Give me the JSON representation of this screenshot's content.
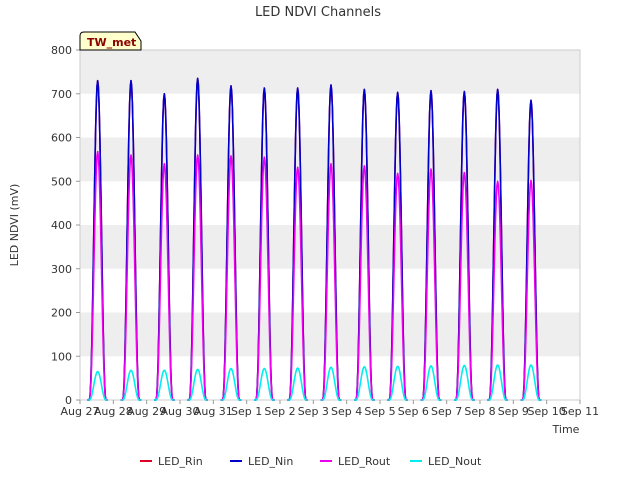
{
  "chart_data": {
    "type": "line",
    "title": "LED NDVI Channels",
    "xlabel": "Time",
    "ylabel": "LED NDVI (mV)",
    "ylim": [
      0,
      800
    ],
    "yticks": [
      0,
      100,
      200,
      300,
      400,
      500,
      600,
      700,
      800
    ],
    "x_range_days": [
      0,
      15
    ],
    "xtick_labels": [
      "Aug 27",
      "Aug 28",
      "Aug 29",
      "Aug 30",
      "Aug 31",
      "Sep 1",
      "Sep 2",
      "Sep 3",
      "Sep 4",
      "Sep 5",
      "Sep 6",
      "Sep 7",
      "Sep 8",
      "Sep 9",
      "Sep 10",
      "Sep 11"
    ],
    "grid": "horizontal bands",
    "legend_position": "bottom",
    "badge": "TW_met",
    "day_peak_dates": [
      "Aug 27",
      "Aug 28",
      "Aug 29",
      "Aug 30",
      "Aug 31",
      "Sep 1",
      "Sep 2",
      "Sep 3",
      "Sep 4",
      "Sep 5",
      "Sep 6",
      "Sep 7",
      "Sep 8",
      "Sep 9"
    ],
    "series": [
      {
        "name": "LED_Rin",
        "color": "#dd0022",
        "peaks": [
          730,
          730,
          700,
          735,
          718,
          713,
          713,
          720,
          710,
          703,
          707,
          705,
          710,
          685
        ]
      },
      {
        "name": "LED_Nin",
        "color": "#0000cc",
        "peaks": [
          730,
          730,
          700,
          735,
          718,
          713,
          713,
          720,
          710,
          703,
          707,
          705,
          710,
          685
        ]
      },
      {
        "name": "LED_Rout",
        "color": "#ee00ee",
        "peaks": [
          568,
          560,
          540,
          560,
          558,
          555,
          532,
          540,
          535,
          518,
          528,
          520,
          500,
          502
        ]
      },
      {
        "name": "LED_Nout",
        "color": "#00eeee",
        "peaks": [
          65,
          68,
          68,
          70,
          72,
          72,
          73,
          75,
          76,
          77,
          78,
          79,
          80,
          80
        ]
      }
    ]
  }
}
